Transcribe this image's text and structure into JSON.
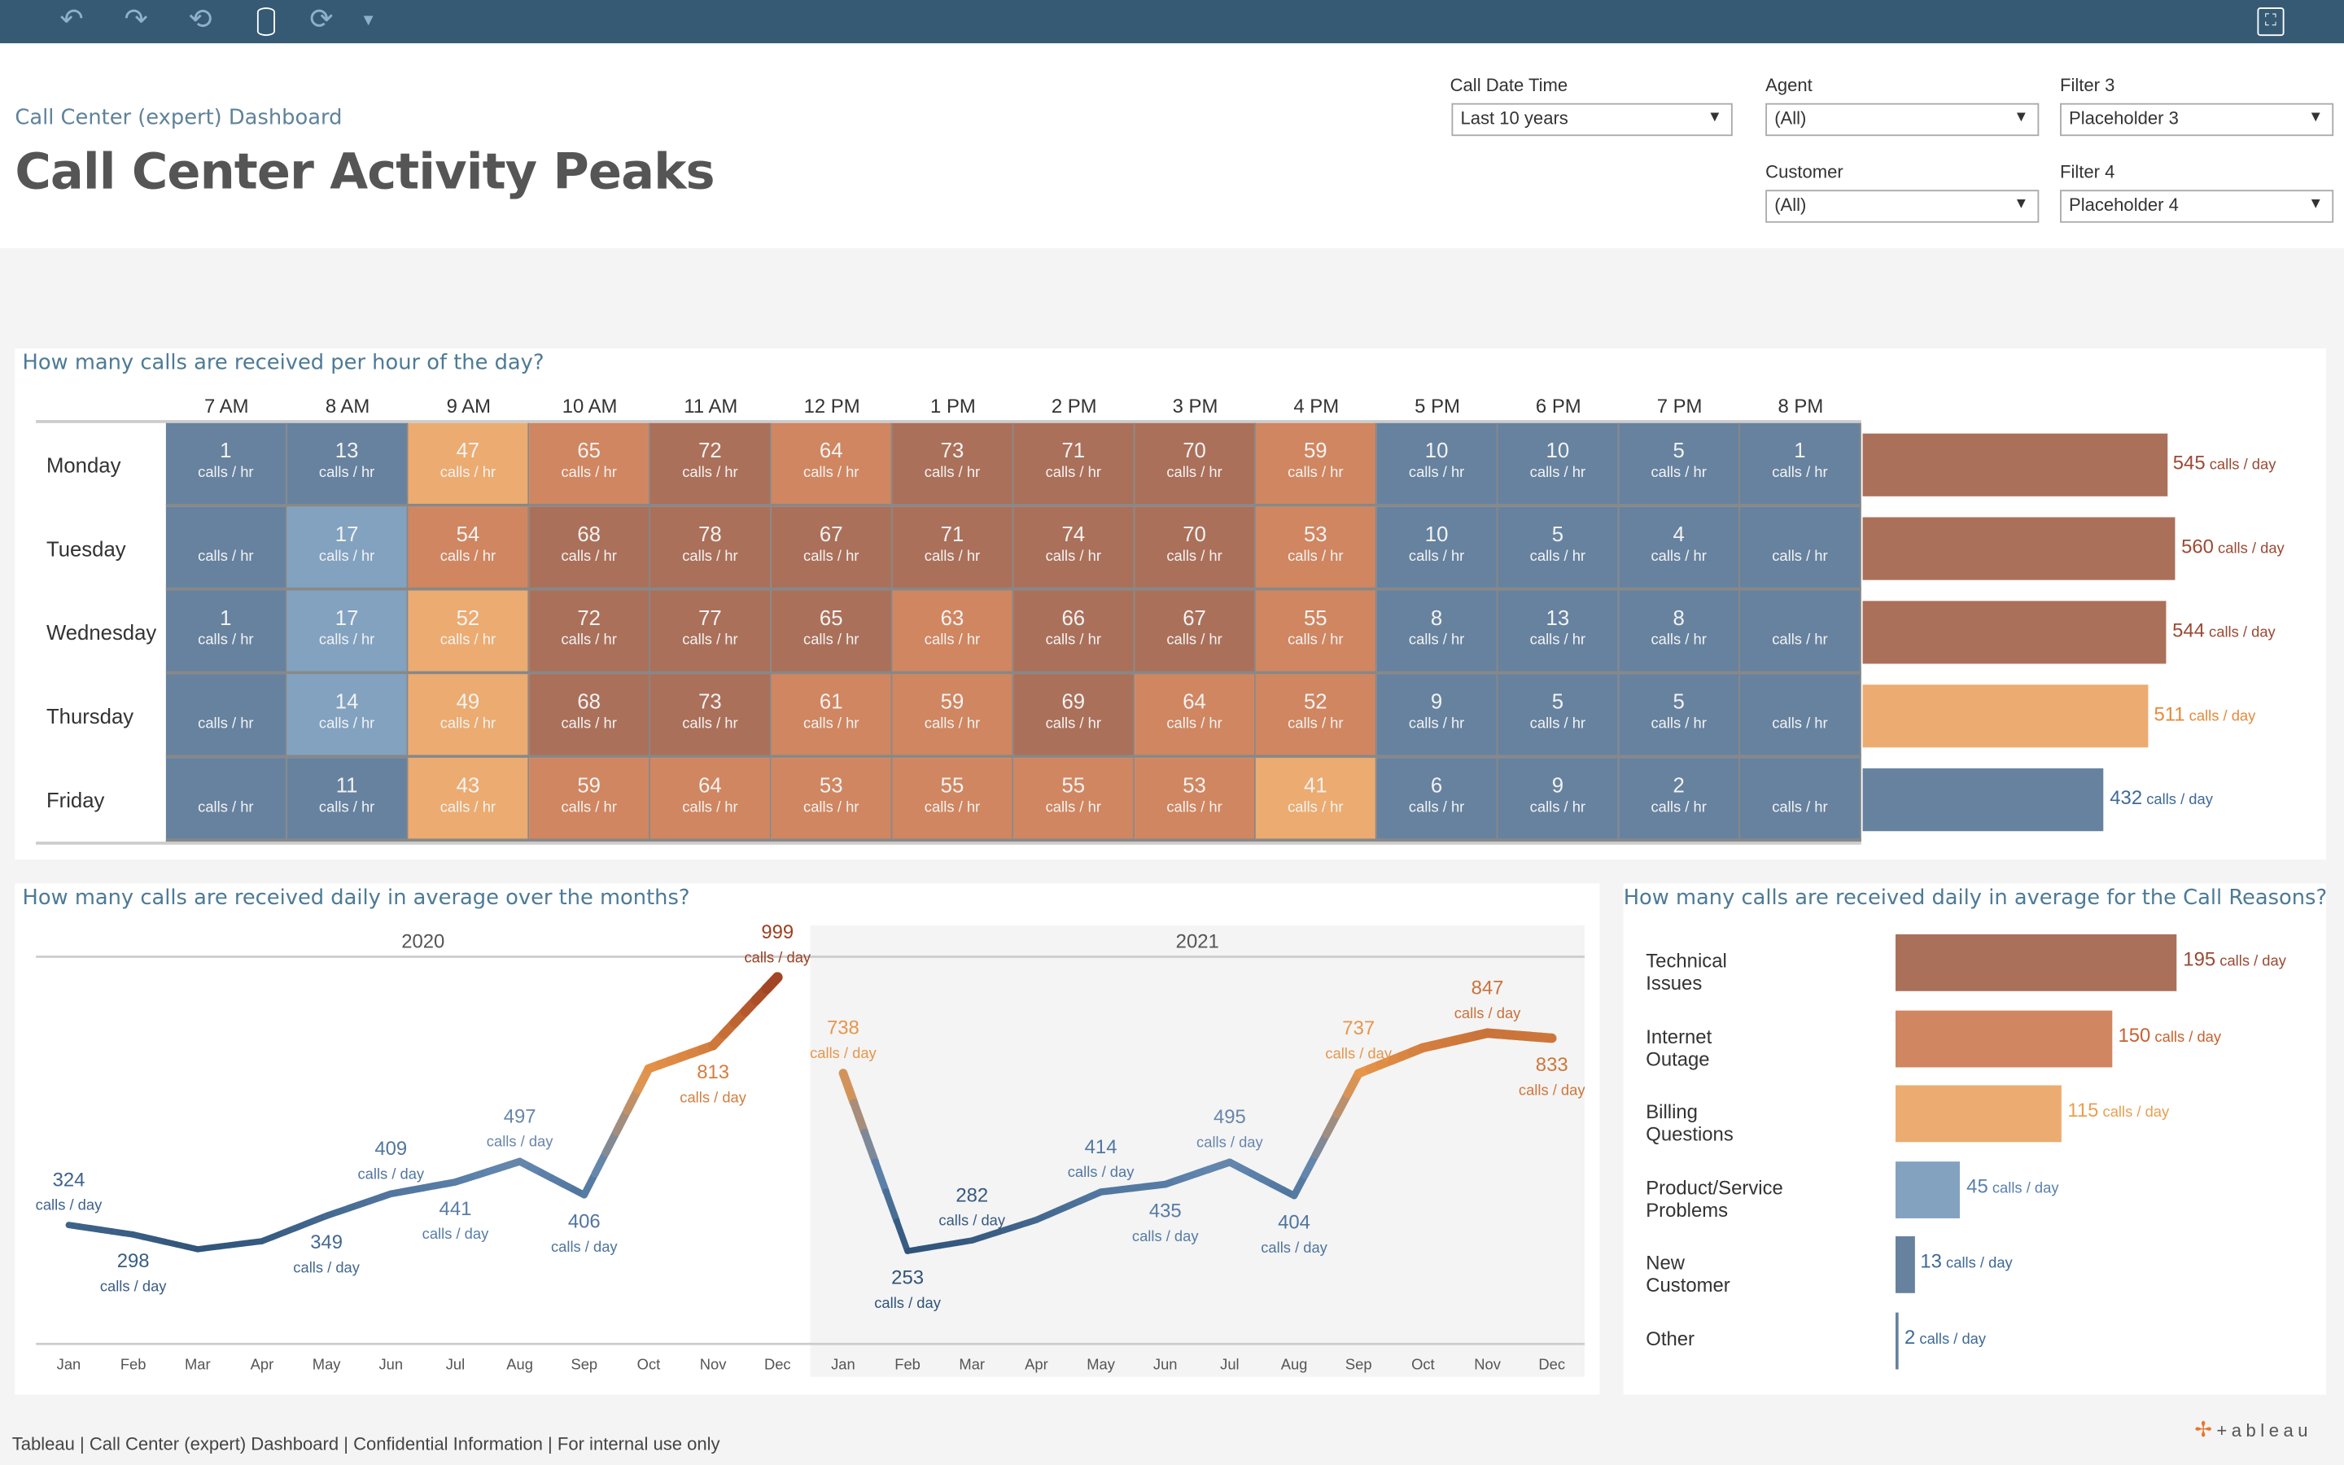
{
  "toolbar": {
    "icons": [
      "undo-icon",
      "redo-icon",
      "revert-icon",
      "data-source-icon",
      "refresh-icon",
      "dropdown-icon",
      "fullscreen-icon"
    ]
  },
  "header": {
    "subtitle": "Call Center (expert) Dashboard",
    "title": "Call Center Activity Peaks"
  },
  "filters": [
    {
      "label": "Call Date Time",
      "value": "Last 10 years"
    },
    {
      "label": "Agent",
      "value": "(All)"
    },
    {
      "label": "Filter 3",
      "value": "Placeholder 3"
    },
    {
      "label": "Customer",
      "value": "(All)"
    },
    {
      "label": "Filter 4",
      "value": "Placeholder 4"
    }
  ],
  "colors": {
    "dark_blue": "#66829f",
    "light_blue": "#82a2c0",
    "light_orange": "#ecab70",
    "orange": "#d08660",
    "brown": "#ab705a",
    "header_bar": "#365a74",
    "title_blue": "#4d7a96"
  },
  "chart_data": [
    {
      "type": "heatmap",
      "title": "How many calls are received per hour of the day?",
      "unit": "calls / hr",
      "columns": [
        "7 AM",
        "8 AM",
        "9 AM",
        "10 AM",
        "11 AM",
        "12 PM",
        "1 PM",
        "2 PM",
        "3 PM",
        "4 PM",
        "5 PM",
        "6 PM",
        "7 PM",
        "8 PM"
      ],
      "rows": [
        {
          "day": "Monday",
          "values": [
            1,
            13,
            47,
            65,
            72,
            64,
            73,
            71,
            70,
            59,
            10,
            10,
            5,
            1
          ],
          "colors": [
            "dark_blue",
            "dark_blue",
            "light_orange",
            "orange",
            "brown",
            "orange",
            "brown",
            "brown",
            "brown",
            "orange",
            "dark_blue",
            "dark_blue",
            "dark_blue",
            "dark_blue"
          ]
        },
        {
          "day": "Tuesday",
          "values": [
            null,
            17,
            54,
            68,
            78,
            67,
            71,
            74,
            70,
            53,
            10,
            5,
            4,
            null
          ],
          "colors": [
            "dark_blue",
            "light_blue",
            "orange",
            "brown",
            "brown",
            "brown",
            "brown",
            "brown",
            "brown",
            "orange",
            "dark_blue",
            "dark_blue",
            "dark_blue",
            "dark_blue"
          ]
        },
        {
          "day": "Wednesday",
          "values": [
            1,
            17,
            52,
            72,
            77,
            65,
            63,
            66,
            67,
            55,
            8,
            13,
            8,
            null
          ],
          "colors": [
            "dark_blue",
            "light_blue",
            "light_orange",
            "brown",
            "brown",
            "brown",
            "orange",
            "brown",
            "brown",
            "orange",
            "dark_blue",
            "dark_blue",
            "dark_blue",
            "dark_blue"
          ]
        },
        {
          "day": "Thursday",
          "values": [
            null,
            14,
            49,
            68,
            73,
            61,
            59,
            69,
            64,
            52,
            9,
            5,
            5,
            null
          ],
          "colors": [
            "dark_blue",
            "light_blue",
            "light_orange",
            "brown",
            "brown",
            "orange",
            "orange",
            "brown",
            "orange",
            "orange",
            "dark_blue",
            "dark_blue",
            "dark_blue",
            "dark_blue"
          ]
        },
        {
          "day": "Friday",
          "values": [
            null,
            11,
            43,
            59,
            64,
            53,
            55,
            55,
            53,
            41,
            6,
            9,
            2,
            null
          ],
          "colors": [
            "dark_blue",
            "dark_blue",
            "light_orange",
            "orange",
            "orange",
            "orange",
            "orange",
            "orange",
            "orange",
            "light_orange",
            "dark_blue",
            "dark_blue",
            "dark_blue",
            "dark_blue"
          ]
        }
      ]
    },
    {
      "type": "bar",
      "unit": "calls / day",
      "categories": [
        "Monday",
        "Tuesday",
        "Wednesday",
        "Thursday",
        "Friday"
      ],
      "values": [
        545,
        560,
        544,
        511,
        432
      ],
      "colors": [
        "brown",
        "brown",
        "brown",
        "light_orange",
        "dark_blue"
      ],
      "label_colors": [
        "#9a4a33",
        "#9a4a33",
        "#9a4a33",
        "#e58a3a",
        "#3f6a96"
      ]
    },
    {
      "type": "line",
      "title": "How many calls are received daily in average over the months?",
      "unit": "calls / day",
      "months": [
        "Jan",
        "Feb",
        "Mar",
        "Apr",
        "May",
        "Jun",
        "Jul",
        "Aug",
        "Sep",
        "Oct",
        "Nov",
        "Dec"
      ],
      "series": [
        {
          "year": "2020",
          "values": [
            324,
            298,
            258,
            280,
            349,
            409,
            441,
            497,
            406,
            750,
            813,
            999
          ],
          "labeled": [
            true,
            true,
            false,
            false,
            true,
            true,
            true,
            true,
            true,
            false,
            true,
            true
          ]
        },
        {
          "year": "2021",
          "values": [
            738,
            253,
            282,
            338,
            414,
            435,
            495,
            404,
            737,
            807,
            847,
            833
          ],
          "labeled": [
            true,
            true,
            true,
            false,
            true,
            true,
            true,
            true,
            true,
            false,
            true,
            true
          ]
        }
      ],
      "ylim": [
        0,
        1000
      ],
      "grid": false
    },
    {
      "type": "bar",
      "title": "How many calls are received daily in average for the Call Reasons?",
      "unit": "calls / day",
      "categories": [
        "Technical Issues",
        "Internet Outage",
        "Billing Questions",
        "Product/Service Problems",
        "New Customer",
        "Other"
      ],
      "values": [
        195,
        150,
        115,
        45,
        13,
        2
      ],
      "colors": [
        "brown",
        "orange",
        "light_orange",
        "light_blue",
        "dark_blue",
        "dark_blue"
      ],
      "label_colors": [
        "#9a4a33",
        "#c8622f",
        "#e8a050",
        "#5a80ab",
        "#3f6a96",
        "#3f6a96"
      ]
    }
  ],
  "footer": {
    "text": "Tableau | Call Center (expert) Dashboard | Confidential Information | For internal use only",
    "logo": "+ a b | e a u"
  }
}
